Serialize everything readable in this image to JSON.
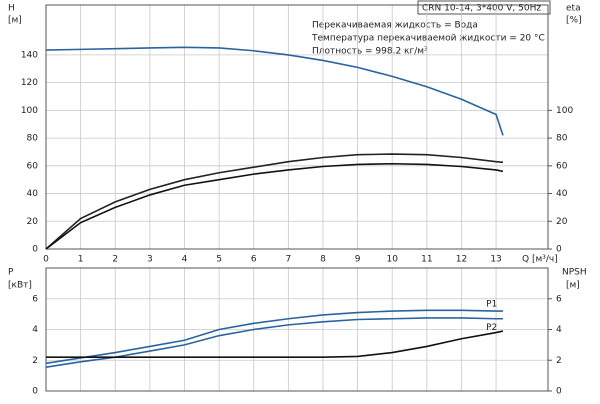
{
  "chart_data": [
    {
      "type": "line",
      "title": "CRN 10-14, 3*400 V, 50Hz",
      "annotations": [
        "Перекачиваемая жидкость = Вода",
        "Температура перекачиваемой жидкости = 20 °C",
        "Плотность = 998.2 кг/м³"
      ],
      "ylabel": [
        "H",
        "[м]"
      ],
      "y2label": [
        "eta",
        "[%]"
      ],
      "xlabel": "Q [м³/ч]",
      "x": [
        0,
        1,
        2,
        3,
        4,
        5,
        6,
        7,
        8,
        9,
        10,
        11,
        12,
        13,
        13.2
      ],
      "xlim": [
        0,
        14.5
      ],
      "xticks": [
        0,
        1,
        2,
        3,
        4,
        5,
        6,
        7,
        8,
        9,
        10,
        11,
        12,
        13
      ],
      "ylim": [
        0,
        176
      ],
      "yticks": [
        0,
        20,
        40,
        60,
        80,
        100,
        120,
        140
      ],
      "y2lim": [
        0,
        176
      ],
      "y2ticks": [
        0,
        20,
        40,
        60,
        80,
        100
      ],
      "grid": true,
      "show_xtick_labels": true,
      "series": [
        {
          "color": "#2a64a0",
          "values": [
            143.5,
            144,
            144.5,
            145,
            145.5,
            145,
            143,
            140,
            136,
            131,
            124.5,
            117,
            108,
            97,
            82
          ]
        },
        {
          "color": "#222222",
          "axis": "y2",
          "values": [
            0,
            22,
            34,
            43,
            50,
            55,
            59,
            63,
            66,
            68,
            68.5,
            68,
            66,
            63,
            62.5
          ]
        },
        {
          "color": "#111111",
          "axis": "y2",
          "values": [
            0,
            19,
            30,
            39,
            46,
            50,
            54,
            57,
            59.5,
            61,
            61.5,
            61,
            59.5,
            57,
            56
          ]
        }
      ]
    },
    {
      "type": "line",
      "ylabel": [
        "P",
        "[кВт]"
      ],
      "y2label": [
        "NPSH",
        "[м]"
      ],
      "x": [
        0,
        1,
        2,
        3,
        4,
        5,
        6,
        7,
        8,
        9,
        10,
        11,
        12,
        13,
        13.2
      ],
      "xlim": [
        0,
        14.5
      ],
      "xticks": [
        0,
        1,
        2,
        3,
        4,
        5,
        6,
        7,
        8,
        9,
        10,
        11,
        12,
        13
      ],
      "ylim": [
        0,
        8
      ],
      "yticks": [
        0,
        2,
        4,
        6
      ],
      "y2lim": [
        0,
        8
      ],
      "y2ticks": [
        0,
        2,
        4,
        6
      ],
      "grid": true,
      "show_xtick_labels": false,
      "series": [
        {
          "name": "P1",
          "color": "#2a64a0",
          "values": [
            1.8,
            2.15,
            2.5,
            2.9,
            3.3,
            4.0,
            4.4,
            4.7,
            4.95,
            5.1,
            5.2,
            5.25,
            5.25,
            5.2,
            5.2
          ]
        },
        {
          "name": "P2",
          "color": "#2a64a0",
          "values": [
            1.55,
            1.9,
            2.2,
            2.6,
            3.0,
            3.6,
            4.0,
            4.3,
            4.5,
            4.65,
            4.7,
            4.75,
            4.75,
            4.7,
            4.7
          ]
        },
        {
          "color": "#111111",
          "axis": "y2",
          "values": [
            2.2,
            2.2,
            2.2,
            2.2,
            2.2,
            2.2,
            2.2,
            2.2,
            2.2,
            2.25,
            2.5,
            2.9,
            3.4,
            3.8,
            3.9
          ]
        }
      ]
    }
  ]
}
